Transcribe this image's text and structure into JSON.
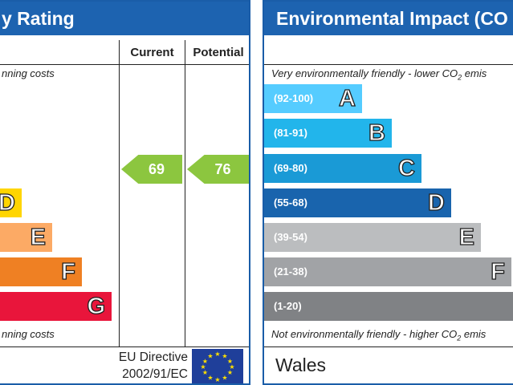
{
  "energy": {
    "title": "y Rating",
    "col_current": "Current",
    "col_potential": "Potential",
    "top_text": "nning costs",
    "bottom_text": "nning costs",
    "bands": [
      {
        "letter": "D",
        "color": "#ffd500"
      },
      {
        "letter": "E",
        "color": "#fcaa65"
      },
      {
        "letter": "F",
        "color": "#ef8023"
      },
      {
        "letter": "G",
        "color": "#e9153b"
      }
    ],
    "current": {
      "value": "69",
      "color": "#8cc63f"
    },
    "potential": {
      "value": "76",
      "color": "#8cc63f"
    },
    "directive_line1": "EU Directive",
    "directive_line2": "2002/91/EC"
  },
  "environment": {
    "title": "Environmental Impact (CO",
    "top_text_prefix": "Very environmentally friendly - lower CO",
    "top_text_sub": "2",
    "top_text_suffix": " emis",
    "bottom_text_prefix": "Not environmentally friendly - higher CO",
    "bottom_text_sub": "2",
    "bottom_text_suffix": " emis",
    "bands": [
      {
        "range": "(92-100)",
        "letter": "A",
        "color": "#55ccff"
      },
      {
        "range": "(81-91)",
        "letter": "B",
        "color": "#22b5eb"
      },
      {
        "range": "(69-80)",
        "letter": "C",
        "color": "#1a9ad6"
      },
      {
        "range": "(55-68)",
        "letter": "D",
        "color": "#1964ad"
      },
      {
        "range": "(39-54)",
        "letter": "E",
        "color": "#bbbdbf"
      },
      {
        "range": "(21-38)",
        "letter": "F",
        "color": "#a1a3a6"
      },
      {
        "range": "(1-20)",
        "letter": "G",
        "color": "#808285"
      }
    ],
    "region": "Wales"
  }
}
